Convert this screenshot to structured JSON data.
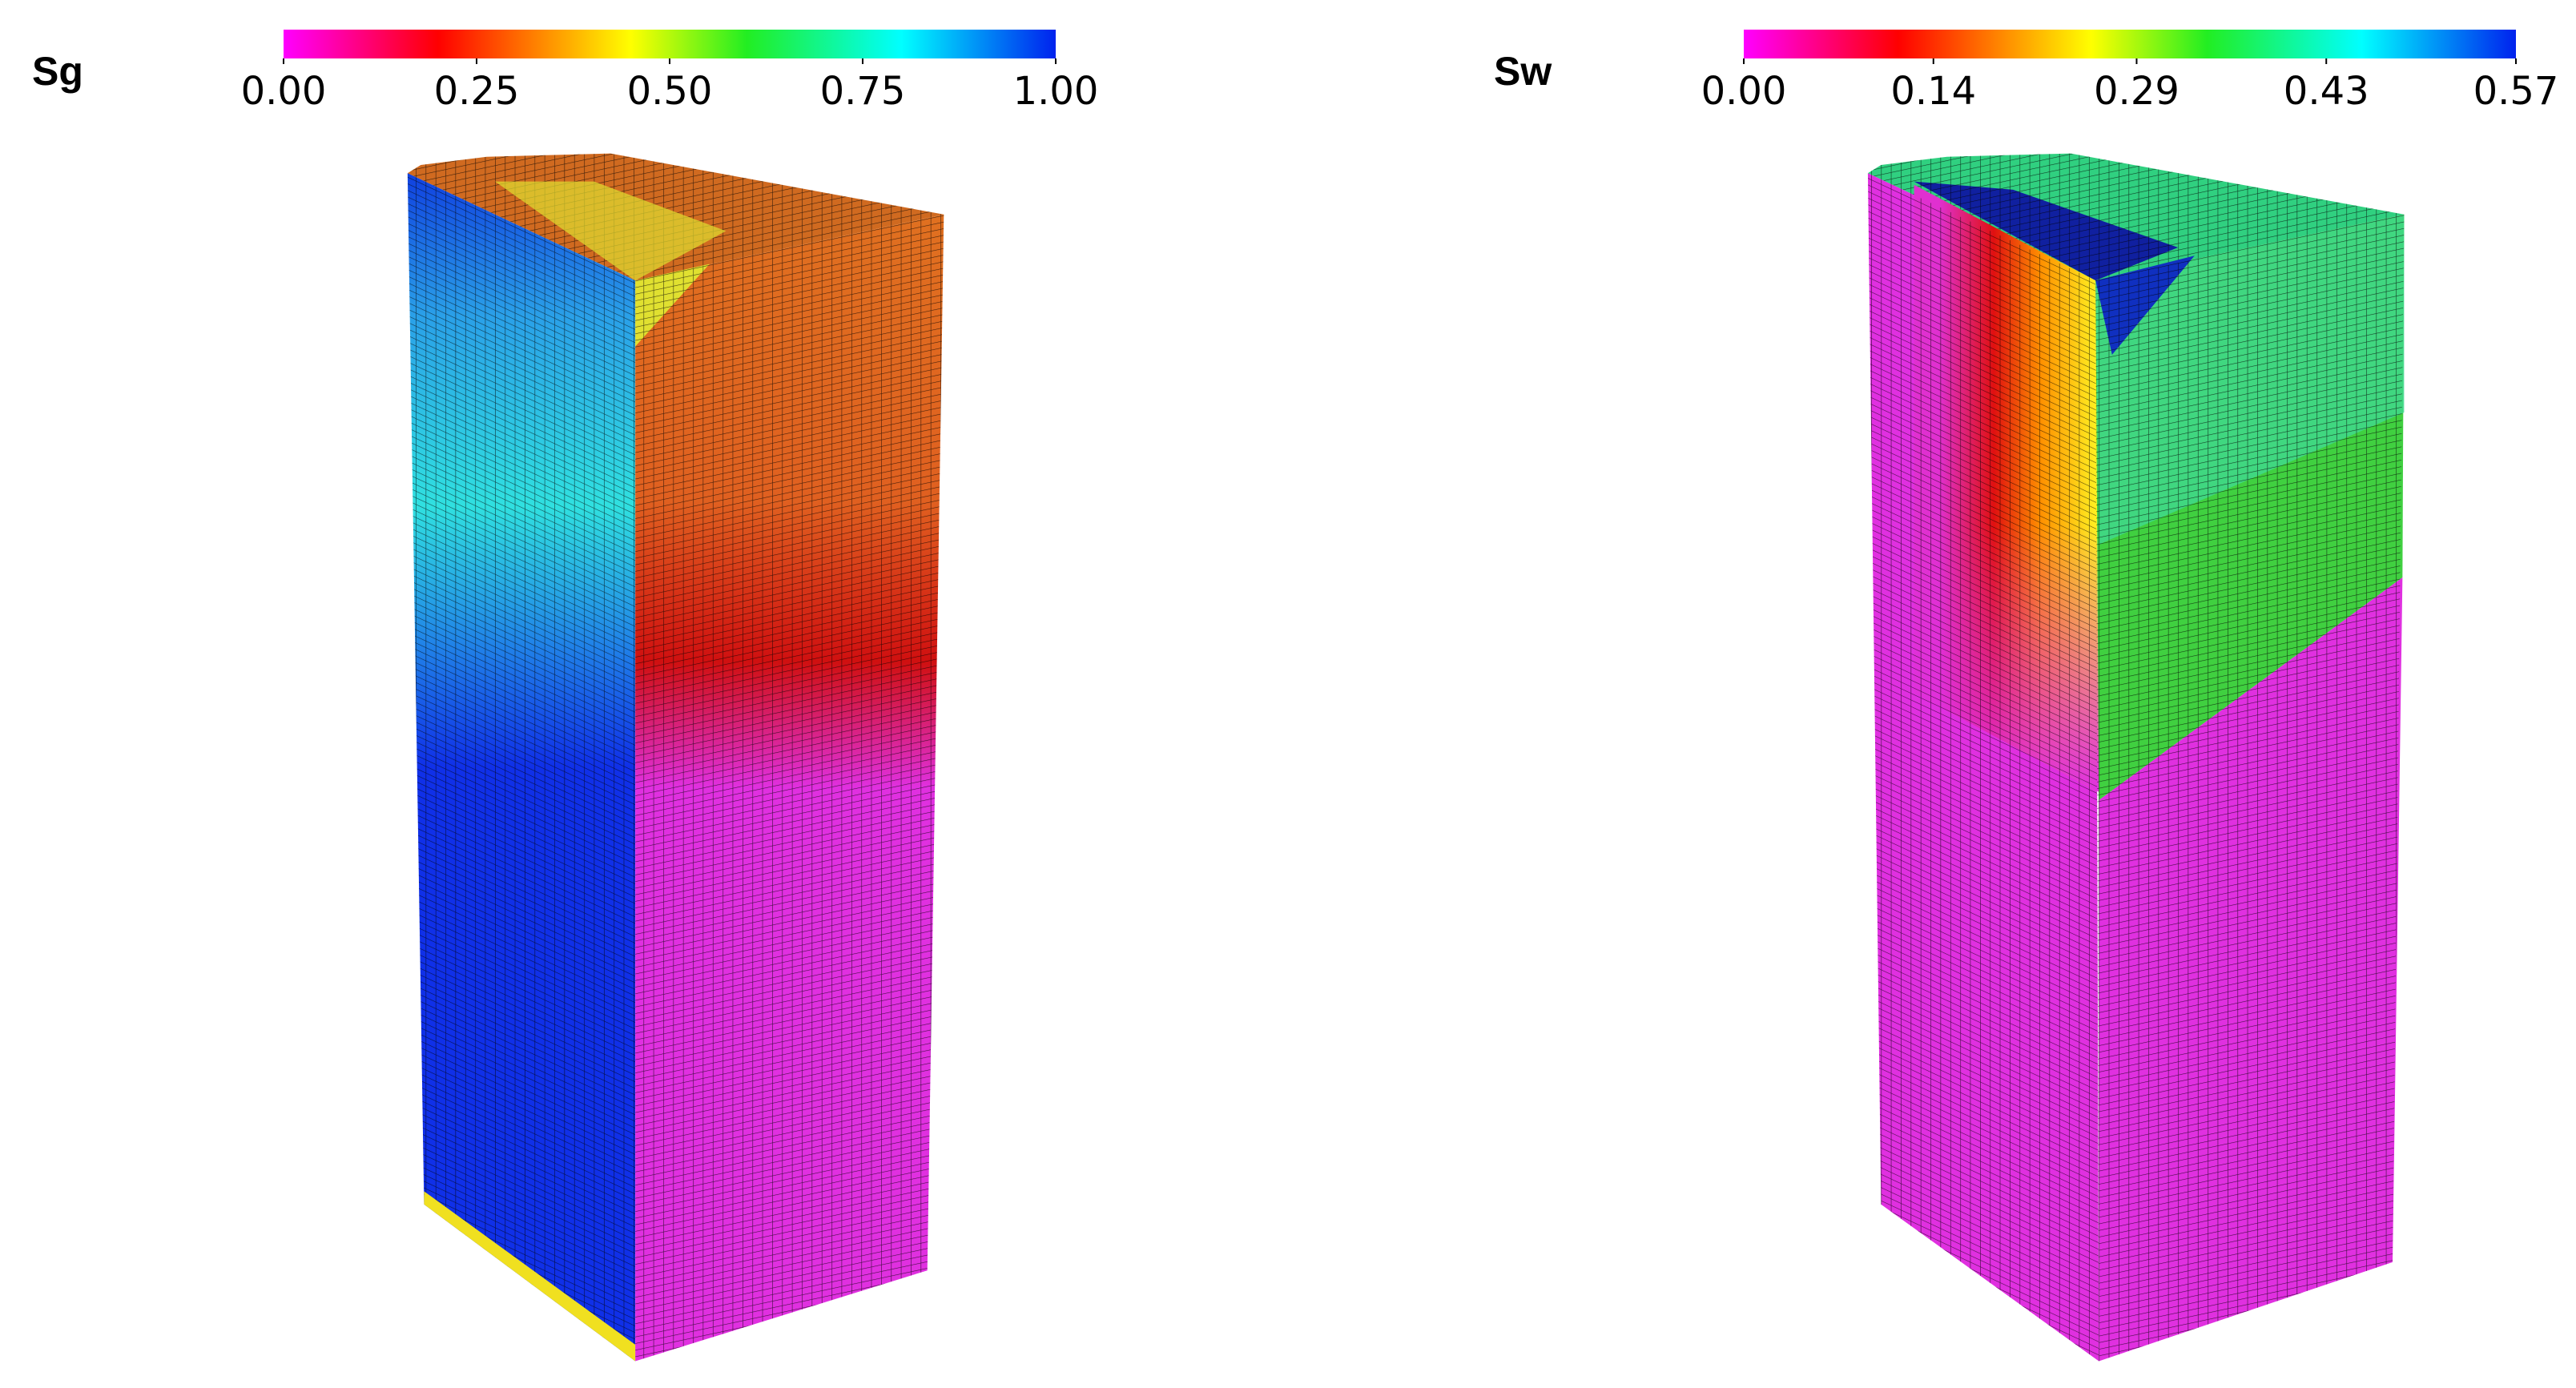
{
  "panels": [
    {
      "title": "Sg",
      "colorbar": {
        "range": [
          0,
          1
        ],
        "ticks": [
          {
            "value": 0,
            "label": "0.00"
          },
          {
            "value": 0.25,
            "label": "0.25"
          },
          {
            "value": 0.5,
            "label": "0.50"
          },
          {
            "value": 0.75,
            "label": "0.75"
          },
          {
            "value": 1,
            "label": "1.00"
          }
        ]
      }
    },
    {
      "title": "Sw",
      "colorbar": {
        "range": [
          0,
          0.57
        ],
        "ticks": [
          {
            "value": 0,
            "label": "0.00"
          },
          {
            "value": 0.14,
            "label": "0.14"
          },
          {
            "value": 0.29,
            "label": "0.29"
          },
          {
            "value": 0.43,
            "label": "0.43"
          },
          {
            "value": 0.57,
            "label": "0.57"
          }
        ]
      }
    }
  ]
}
